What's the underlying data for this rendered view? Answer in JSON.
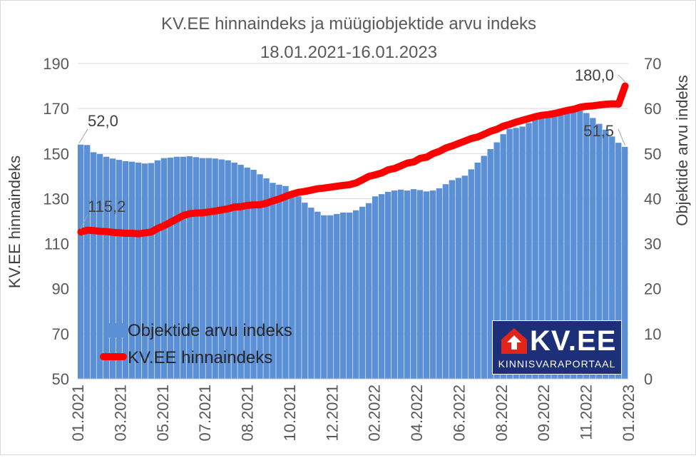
{
  "chart_data": {
    "type": "bar+line",
    "title": "KV.EE hinnaindeks ja müügiobjektide arvu indeks",
    "subtitle": "18.01.2021-16.01.2023",
    "ylabel_left": "KV.EE hinnaindeks",
    "ylabel_right": "Objektide arvu indeks",
    "ylim_left": [
      50,
      190
    ],
    "ylim_right": [
      0,
      70
    ],
    "yticks_left": [
      "50",
      "70",
      "90",
      "110",
      "130",
      "150",
      "170",
      "190"
    ],
    "yticks_right": [
      "0",
      "10",
      "20",
      "30",
      "40",
      "50",
      "60",
      "70"
    ],
    "xticks": [
      "01.2021",
      "03.2021",
      "05.2021",
      "07.2021",
      "08.2021",
      "10.2021",
      "12.2021",
      "02.2022",
      "04.2022",
      "06.2022",
      "08.2022",
      "09.2022",
      "11.2022",
      "01.2023"
    ],
    "grid": true,
    "legend": "bottom-left",
    "series": [
      {
        "name": "Objektide arvu indeks",
        "type": "bar",
        "axis": "right",
        "color": "#5b8fd6",
        "values": [
          52.0,
          51.9,
          50.3,
          49.9,
          49.3,
          48.9,
          48.6,
          48.3,
          48.2,
          48.0,
          47.8,
          47.9,
          48.5,
          49.0,
          49.1,
          49.3,
          49.3,
          49.4,
          49.2,
          49.0,
          49.0,
          48.9,
          48.7,
          48.5,
          48.0,
          47.5,
          46.9,
          46.4,
          45.4,
          44.5,
          43.5,
          43.1,
          42.8,
          41.5,
          40.5,
          39.1,
          38.0,
          37.1,
          36.3,
          36.3,
          36.6,
          36.9,
          36.9,
          37.4,
          38.2,
          39.0,
          40.5,
          41.0,
          41.5,
          41.8,
          42.0,
          41.8,
          42.1,
          41.9,
          41.6,
          41.8,
          42.3,
          43.2,
          44.1,
          44.6,
          45.1,
          46.5,
          48.0,
          49.5,
          51.0,
          52.5,
          54.3,
          55.5,
          55.7,
          56.0,
          56.8,
          57.5,
          58.0,
          58.5,
          58.8,
          59.0,
          59.5,
          59.5,
          59.5,
          59.0,
          57.9,
          56.6,
          55.3,
          53.8,
          52.4,
          51.5
        ],
        "labels": [
          {
            "index": 0,
            "text": "52,0"
          },
          {
            "index": 85,
            "text": "51,5"
          }
        ]
      },
      {
        "name": "KV.EE hinnaindeks",
        "type": "line",
        "axis": "left",
        "color": "#ff0000",
        "values": [
          115.2,
          116.0,
          115.8,
          115.5,
          115.4,
          115.0,
          114.8,
          114.6,
          114.6,
          114.4,
          114.8,
          115.2,
          116.8,
          118.0,
          119.5,
          121.0,
          122.5,
          123.3,
          123.6,
          123.7,
          124.1,
          124.5,
          125.0,
          125.5,
          126.3,
          126.4,
          127.0,
          127.2,
          127.3,
          128.0,
          129.0,
          129.9,
          131.0,
          132.0,
          132.8,
          133.2,
          133.8,
          134.4,
          134.7,
          135.1,
          135.5,
          135.9,
          136.2,
          137.0,
          138.4,
          139.9,
          140.6,
          141.4,
          142.8,
          143.4,
          144.6,
          145.8,
          146.3,
          147.9,
          148.4,
          150.0,
          151.0,
          152.5,
          153.4,
          154.5,
          155.6,
          156.7,
          157.4,
          158.6,
          159.9,
          160.8,
          162.2,
          163.0,
          164.0,
          164.8,
          165.6,
          166.4,
          167.0,
          167.3,
          167.8,
          168.5,
          169.2,
          169.7,
          170.6,
          171.0,
          171.2,
          171.6,
          171.9,
          172.1,
          172.0,
          180.0
        ],
        "labels": [
          {
            "index": 0,
            "text": "115,2"
          },
          {
            "index": 85,
            "text": "180,0"
          }
        ]
      }
    ]
  },
  "logo": {
    "brand": "KV.EE",
    "tagline": "KINNISVARAPORTAAL"
  }
}
